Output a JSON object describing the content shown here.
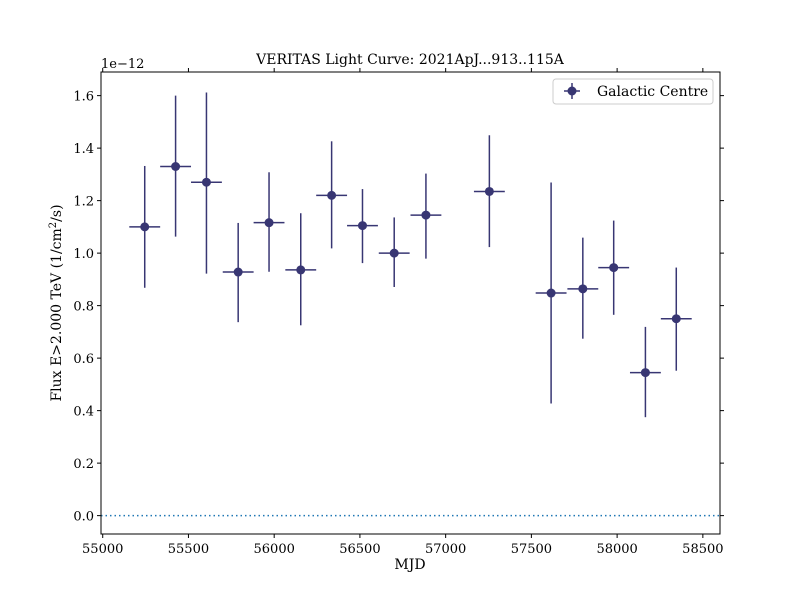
{
  "chart_data": {
    "type": "scatter",
    "title": "VERITAS Light Curve: 2021ApJ...913..115A",
    "xlabel": "MJD",
    "ylabel_main": "Flux E>2.000 TeV (1/cm",
    "ylabel_sup": "2",
    "ylabel_end": "/s)",
    "offset_text": "1e−12",
    "xlim": [
      54990,
      58600
    ],
    "ylim": [
      -0.07,
      1.69
    ],
    "x_ticks": [
      55000,
      55500,
      56000,
      56500,
      57000,
      57500,
      58000,
      58500
    ],
    "x_tick_labels": [
      "55000",
      "55500",
      "56000",
      "56500",
      "57000",
      "57500",
      "58000",
      "58500"
    ],
    "y_ticks": [
      0.0,
      0.2,
      0.4,
      0.6,
      0.8,
      1.0,
      1.2,
      1.4,
      1.6
    ],
    "y_tick_labels": [
      "0.0",
      "0.2",
      "0.4",
      "0.6",
      "0.8",
      "1.0",
      "1.2",
      "1.4",
      "1.6"
    ],
    "baseline_y": 0.0,
    "grid": false,
    "legend_position": "top-right",
    "series": [
      {
        "name": "Galactic Centre",
        "color": "#383673",
        "points": [
          {
            "x": 55245,
            "xerr": 90,
            "y": 1.1,
            "ylo": 0.868,
            "yhi": 1.332
          },
          {
            "x": 55425,
            "xerr": 90,
            "y": 1.33,
            "ylo": 1.063,
            "yhi": 1.6
          },
          {
            "x": 55605,
            "xerr": 90,
            "y": 1.27,
            "ylo": 0.922,
            "yhi": 1.612
          },
          {
            "x": 55790,
            "xerr": 90,
            "y": 0.928,
            "ylo": 0.737,
            "yhi": 1.115
          },
          {
            "x": 55970,
            "xerr": 90,
            "y": 1.116,
            "ylo": 0.929,
            "yhi": 1.308
          },
          {
            "x": 56155,
            "xerr": 90,
            "y": 0.936,
            "ylo": 0.725,
            "yhi": 1.152
          },
          {
            "x": 56335,
            "xerr": 90,
            "y": 1.22,
            "ylo": 1.018,
            "yhi": 1.426
          },
          {
            "x": 56515,
            "xerr": 90,
            "y": 1.105,
            "ylo": 0.962,
            "yhi": 1.244
          },
          {
            "x": 56700,
            "xerr": 90,
            "y": 1.0,
            "ylo": 0.871,
            "yhi": 1.136
          },
          {
            "x": 56885,
            "xerr": 90,
            "y": 1.145,
            "ylo": 0.979,
            "yhi": 1.303
          },
          {
            "x": 57255,
            "xerr": 90,
            "y": 1.235,
            "ylo": 1.023,
            "yhi": 1.449
          },
          {
            "x": 57615,
            "xerr": 90,
            "y": 0.848,
            "ylo": 0.427,
            "yhi": 1.269
          },
          {
            "x": 57800,
            "xerr": 90,
            "y": 0.864,
            "ylo": 0.674,
            "yhi": 1.059
          },
          {
            "x": 57980,
            "xerr": 90,
            "y": 0.945,
            "ylo": 0.765,
            "yhi": 1.124
          },
          {
            "x": 58165,
            "xerr": 90,
            "y": 0.545,
            "ylo": 0.375,
            "yhi": 0.719
          },
          {
            "x": 58345,
            "xerr": 90,
            "y": 0.75,
            "ylo": 0.552,
            "yhi": 0.945
          }
        ]
      }
    ]
  }
}
